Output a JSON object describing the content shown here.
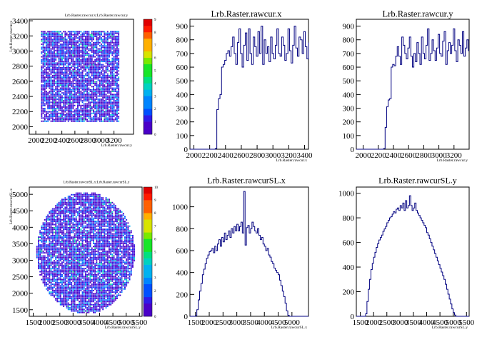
{
  "chart_data": [
    {
      "type": "heatmap",
      "title": "Lrb.Raster.rawcur.x:Lrb.Raster.rawcur.y",
      "xlabel": "Lrb.Raster.rawcur.y",
      "ylabel": "Lrb.Raster.rawcur.x",
      "xticks": [
        "2000",
        "2200",
        "2400",
        "2600",
        "2800",
        "3000",
        "3200"
      ],
      "yticks": [
        "2000",
        "2200",
        "2400",
        "2600",
        "2800",
        "3000",
        "3200",
        "3400"
      ],
      "xlim": [
        1900,
        3500
      ],
      "ylim": [
        1900,
        3420
      ],
      "fill_region": "square",
      "fill_x": [
        2060,
        3270
      ],
      "fill_y": [
        2080,
        3270
      ],
      "zlim": [
        0,
        9
      ],
      "zticks": [
        "0",
        "1",
        "2",
        "3",
        "4",
        "5",
        "6",
        "7",
        "8",
        "9"
      ]
    },
    {
      "type": "histogram",
      "title": "Lrb.Raster.rawcur.x",
      "xlabel": "Lrb.Raster.rawcur.x",
      "xticks": [
        "2000",
        "2200",
        "2400",
        "2600",
        "2800",
        "3000",
        "3200",
        "3400"
      ],
      "yticks": [
        "0",
        "100",
        "200",
        "300",
        "400",
        "500",
        "600",
        "700",
        "800",
        "900"
      ],
      "xlim": [
        1950,
        3450
      ],
      "ylim": [
        0,
        950
      ],
      "bin_start": 1950,
      "bin_width": 20,
      "values": [
        0,
        0,
        0,
        0,
        0,
        0,
        0,
        0,
        0,
        0,
        0,
        0,
        0,
        0,
        0,
        0,
        5,
        290,
        370,
        400,
        600,
        620,
        650,
        700,
        720,
        680,
        750,
        820,
        700,
        620,
        780,
        880,
        700,
        600,
        760,
        850,
        650,
        880,
        700,
        620,
        820,
        750,
        680,
        860,
        700,
        900,
        620,
        800,
        700,
        750,
        640,
        820,
        700,
        660,
        760,
        880,
        700,
        680,
        820,
        760,
        650,
        700,
        880,
        720,
        630,
        760,
        900,
        740,
        680,
        820,
        800,
        700,
        860,
        750,
        660,
        780,
        740,
        690,
        860,
        640,
        720,
        400,
        380,
        300,
        160,
        60,
        20,
        0,
        0,
        0
      ]
    },
    {
      "type": "histogram",
      "title": "Lrb.Raster.rawcur.y",
      "xlabel": "Lrb.Raster.rawcur.y",
      "xticks": [
        "2000",
        "2200",
        "2400",
        "2600",
        "2800",
        "3000",
        "3200"
      ],
      "yticks": [
        "0",
        "100",
        "200",
        "300",
        "400",
        "500",
        "600",
        "700",
        "800",
        "900"
      ],
      "xlim": [
        1910,
        3400
      ],
      "ylim": [
        0,
        950
      ],
      "bin_start": 1910,
      "bin_width": 20,
      "values": [
        0,
        0,
        0,
        0,
        0,
        0,
        0,
        0,
        0,
        0,
        0,
        0,
        0,
        0,
        0,
        0,
        0,
        0,
        5,
        160,
        310,
        360,
        370,
        600,
        620,
        610,
        680,
        750,
        680,
        620,
        820,
        760,
        700,
        660,
        740,
        820,
        680,
        600,
        700,
        640,
        780,
        700,
        620,
        820,
        700,
        660,
        760,
        880,
        650,
        700,
        800,
        720,
        650,
        740,
        840,
        700,
        680,
        790,
        860,
        620,
        720,
        780,
        700,
        760,
        880,
        720,
        640,
        800,
        760,
        700,
        860,
        680,
        740,
        800,
        720,
        660,
        780,
        700,
        640,
        360,
        200,
        80,
        20,
        0,
        0
      ]
    },
    {
      "type": "heatmap",
      "title": "Lrb.Raster.rawcurSL.x:Lrb.Raster.rawcurSL.y",
      "xlabel": "Lrb.Raster.rawcurSL.y",
      "ylabel": "Lrb.Raster.rawcurSL.x",
      "xticks": [
        "1500",
        "2000",
        "2500",
        "3000",
        "3500",
        "4000",
        "4500",
        "5000",
        "5500"
      ],
      "yticks": [
        "1500",
        "2000",
        "2500",
        "3000",
        "3500",
        "4000",
        "4500",
        "5000"
      ],
      "xlim": [
        1350,
        5600
      ],
      "ylim": [
        1300,
        5220
      ],
      "fill_region": "disk",
      "fill_center": [
        3450,
        3250
      ],
      "fill_radius": 1850,
      "zlim": [
        0,
        10
      ],
      "zticks": [
        "0",
        "1",
        "2",
        "3",
        "4",
        "5",
        "6",
        "7",
        "8",
        "9",
        "10"
      ]
    },
    {
      "type": "histogram",
      "title": "Lrb.Raster.rawcurSL.x",
      "xlabel": "Lrb.Raster.rawcurSL.x",
      "xticks": [
        "1500",
        "2000",
        "2500",
        "3000",
        "3500",
        "4000",
        "4500",
        "5000"
      ],
      "yticks": [
        "0",
        "200",
        "400",
        "600",
        "800",
        "1000"
      ],
      "xlim": [
        1300,
        5600
      ],
      "ylim": [
        0,
        1180
      ],
      "bin_start": 1300,
      "bin_width": 50,
      "values": [
        0,
        0,
        0,
        0,
        5,
        60,
        150,
        230,
        300,
        380,
        430,
        480,
        530,
        560,
        590,
        600,
        620,
        580,
        640,
        600,
        660,
        700,
        640,
        720,
        680,
        760,
        700,
        740,
        780,
        720,
        800,
        760,
        820,
        780,
        840,
        780,
        820,
        860,
        760,
        1140,
        650,
        810,
        830,
        760,
        800,
        860,
        820,
        780,
        760,
        800,
        740,
        700,
        720,
        660,
        640,
        600,
        620,
        560,
        540,
        500,
        480,
        440,
        420,
        400,
        380,
        330,
        280,
        230,
        180,
        120,
        50,
        10,
        0,
        0,
        0,
        0,
        0,
        0,
        0,
        0,
        0,
        0,
        0,
        0,
        0,
        0
      ]
    },
    {
      "type": "histogram",
      "title": "Lrb.Raster.rawcurSL.y",
      "xlabel": "Lrb.Raster.rawcurSL.y",
      "xticks": [
        "1500",
        "2000",
        "2500",
        "3000",
        "3500",
        "4000",
        "4500",
        "5000",
        "5500"
      ],
      "yticks": [
        "0",
        "200",
        "400",
        "600",
        "800",
        "1000"
      ],
      "xlim": [
        1350,
        5600
      ],
      "ylim": [
        0,
        1050
      ],
      "bin_start": 1350,
      "bin_width": 50,
      "values": [
        0,
        0,
        0,
        0,
        0,
        0,
        0,
        20,
        120,
        220,
        300,
        380,
        430,
        480,
        520,
        560,
        590,
        620,
        640,
        660,
        690,
        710,
        730,
        760,
        780,
        800,
        810,
        830,
        850,
        840,
        870,
        880,
        860,
        900,
        880,
        920,
        860,
        940,
        880,
        900,
        980,
        900,
        860,
        880,
        920,
        860,
        840,
        820,
        800,
        780,
        760,
        740,
        720,
        680,
        660,
        630,
        600,
        570,
        540,
        510,
        480,
        450,
        420,
        390,
        360,
        330,
        300,
        260,
        220,
        180,
        140,
        100,
        60,
        30,
        10,
        0,
        0,
        0,
        0,
        0,
        0,
        0,
        0,
        0,
        0
      ]
    }
  ]
}
